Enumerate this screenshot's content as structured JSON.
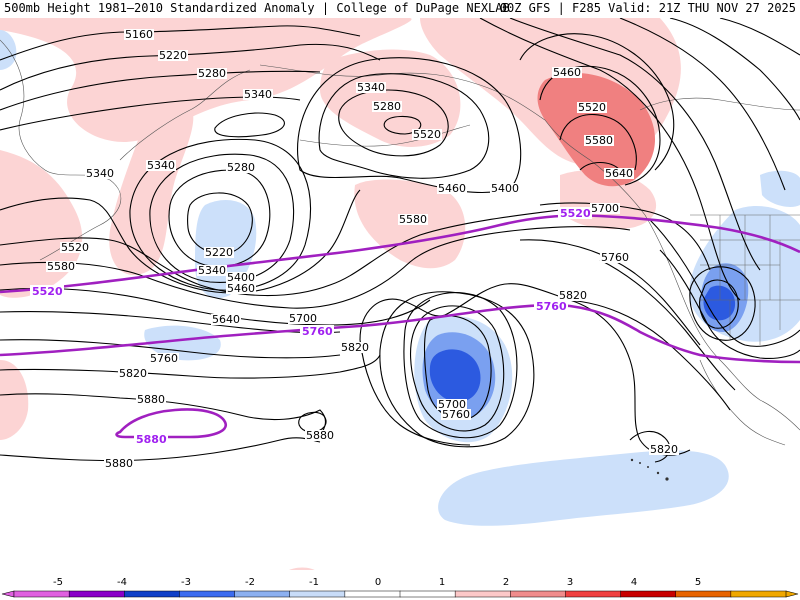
{
  "header": {
    "left_title": "500mb Height 1981–2010 Standardized Anomaly | College of DuPage NEXLAB",
    "right_title": "00Z GFS | F285 Valid: 21Z THU NOV 27 2025"
  },
  "contours": {
    "black_labels": [
      "5160",
      "5220",
      "5280",
      "5340",
      "5340",
      "5280",
      "5340",
      "5220",
      "5340",
      "5400",
      "5460",
      "5280",
      "5340",
      "5400",
      "5460",
      "5520",
      "5580",
      "5640",
      "5460",
      "5520",
      "5580",
      "5640",
      "5520",
      "5580",
      "5700",
      "5760",
      "5820",
      "5880",
      "5880",
      "5820",
      "5700",
      "5760",
      "5820",
      "5700",
      "5760",
      "5820",
      "5880"
    ],
    "purple_labels": [
      "5520",
      "5520",
      "5760",
      "5760",
      "5880"
    ]
  },
  "colorbar": {
    "ticks": [
      "-5",
      "-4",
      "-3",
      "-2",
      "-1",
      "0",
      "1",
      "2",
      "3",
      "4",
      "5"
    ],
    "colors": [
      "#e060e0",
      "#8a00c8",
      "#1040c8",
      "#3c6cf0",
      "#8cb0f0",
      "#c8dcf8",
      "#ffffff",
      "#ffffff",
      "#fcc8c8",
      "#f08c8c",
      "#f04040",
      "#c80000",
      "#e86400",
      "#f0a800"
    ]
  },
  "colors": {
    "pos_weak": "#fcd4d4",
    "pos_mod": "#f08080",
    "neg_weak": "#cce0fa",
    "neg_mod": "#7aa0f0",
    "neg_strong": "#2c5ae0",
    "neg_core": "#1846c8",
    "purple": "#a020c0"
  }
}
